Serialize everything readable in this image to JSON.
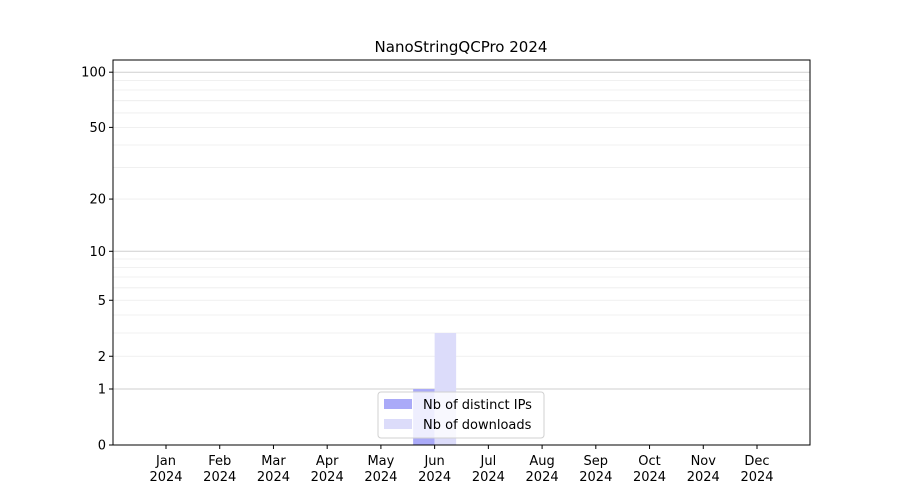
{
  "chart_data": {
    "type": "bar",
    "title": "NanoStringQCPro 2024",
    "xlabel": "",
    "ylabel": "",
    "y_scale": "log(1+y)",
    "ylim": [
      0,
      117
    ],
    "y_ticks": [
      0,
      1,
      2,
      5,
      10,
      20,
      50,
      100
    ],
    "grid": true,
    "legend_placement": "lower-center",
    "categories": [
      "Jan\n2024",
      "Feb\n2024",
      "Mar\n2024",
      "Apr\n2024",
      "May\n2024",
      "Jun\n2024",
      "Jul\n2024",
      "Aug\n2024",
      "Sep\n2024",
      "Oct\n2024",
      "Nov\n2024",
      "Dec\n2024"
    ],
    "series": [
      {
        "name": "Nb of distinct IPs",
        "color": "#aaaaf8",
        "values": [
          0,
          0,
          0,
          0,
          0,
          1,
          0,
          0,
          0,
          0,
          0,
          0
        ]
      },
      {
        "name": "Nb of downloads",
        "color": "#dcdcfa",
        "values": [
          0,
          0,
          0,
          0,
          0,
          3,
          0,
          0,
          0,
          0,
          0,
          0
        ]
      }
    ]
  }
}
